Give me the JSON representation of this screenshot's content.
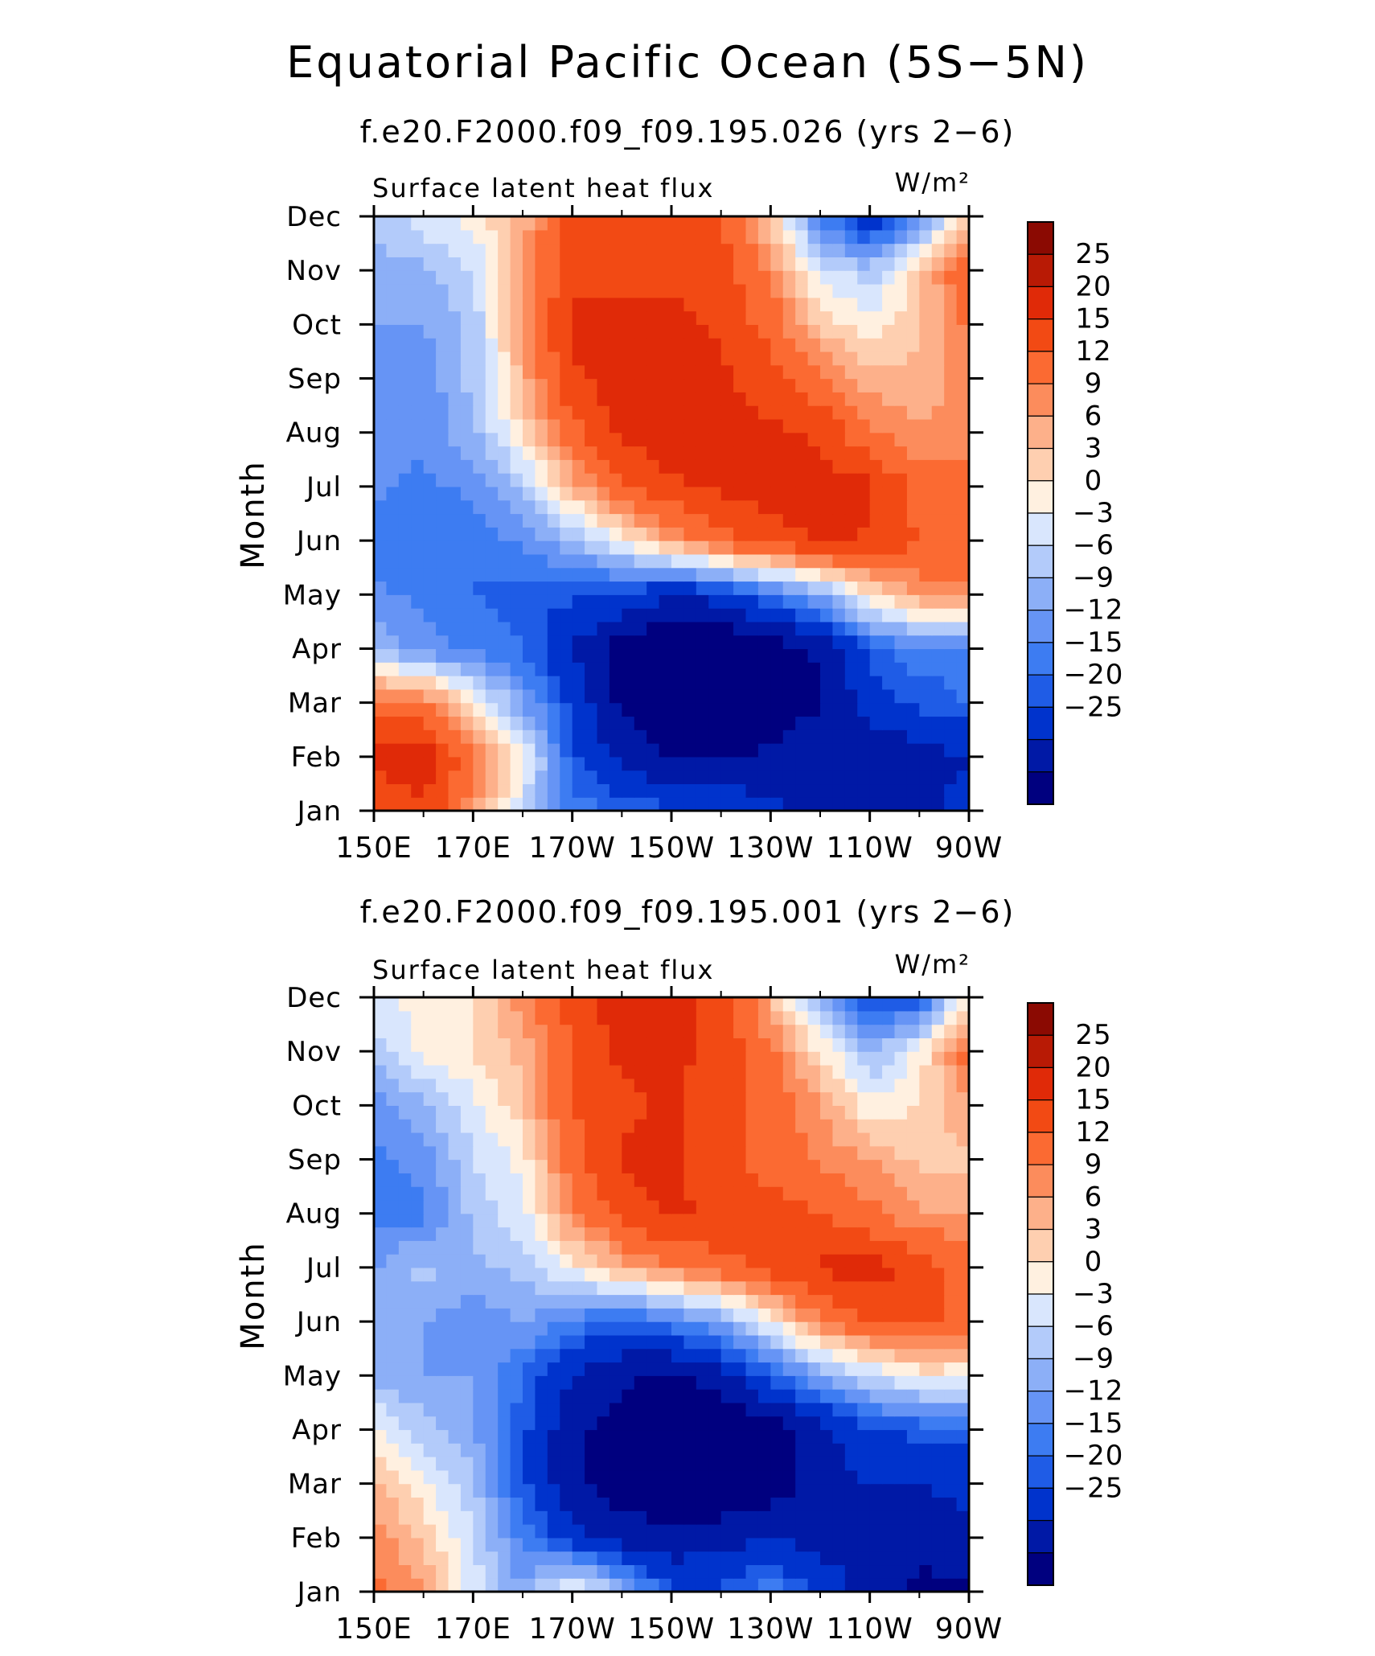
{
  "title": "Equatorial Pacific Ocean (5S−5N)",
  "colormap": {
    "colors": [
      "#00007f",
      "#0019a6",
      "#0033cc",
      "#1f5ce6",
      "#3d7cf2",
      "#6694f5",
      "#8caff7",
      "#b3cbfa",
      "#d9e6fd",
      "#fff0e0",
      "#fecfb0",
      "#fdb08a",
      "#fc8c5c",
      "#fb6a32",
      "#f24a14",
      "#e02a08",
      "#b81a05",
      "#8b0a02"
    ],
    "labels": [
      "25",
      "20",
      "15",
      "12",
      "9",
      "6",
      "3",
      "0",
      "−3",
      "−6",
      "−9",
      "−12",
      "−15",
      "−20",
      "−25"
    ],
    "levels": [
      -25,
      -20,
      -15,
      -12,
      -9,
      -6,
      -3,
      0,
      3,
      6,
      9,
      12,
      15,
      20,
      25
    ]
  },
  "panels": [
    {
      "subtitle": "f.e20.F2000.f09_f09.195.026 (yrs 2−6)",
      "left_label": "Surface latent heat flux",
      "units": "W/m²",
      "ylabel": "Month"
    },
    {
      "subtitle": "f.e20.F2000.f09_f09.195.001 (yrs 2−6)",
      "left_label": "Surface latent heat flux",
      "units": "W/m²",
      "ylabel": "Month"
    }
  ],
  "chart_data": [
    {
      "type": "heatmap",
      "title": "f.e20.F2000.f09_f09.195.026 (yrs 2−6)",
      "subtitle": "Surface latent heat flux",
      "units": "W/m²",
      "ylabel": "Month",
      "x": [
        150,
        160,
        170,
        180,
        190,
        200,
        210,
        220,
        230,
        240,
        250,
        260,
        270
      ],
      "x_units": "degrees longitude east",
      "x_tick_values": [
        150,
        170,
        190,
        210,
        230,
        250,
        270
      ],
      "x_tick_labels": [
        "150E",
        "170E",
        "170W",
        "150W",
        "130W",
        "110W",
        "90W"
      ],
      "y": [
        "Jan",
        "Feb",
        "Mar",
        "Apr",
        "May",
        "Jun",
        "Jul",
        "Aug",
        "Sep",
        "Oct",
        "Nov",
        "Dec"
      ],
      "z": [
        [
          22,
          24,
          12,
          0,
          -10,
          -12,
          -14,
          -16,
          -18,
          -24,
          -24,
          -22,
          -18
        ],
        [
          26,
          28,
          16,
          4,
          -14,
          -22,
          -26,
          -26,
          -24,
          -20,
          -24,
          -22,
          -20
        ],
        [
          18,
          16,
          6,
          -6,
          -16,
          -26,
          -30,
          -30,
          -28,
          -26,
          -18,
          -14,
          -12
        ],
        [
          -4,
          -8,
          -10,
          -12,
          -20,
          -28,
          -30,
          -30,
          -28,
          -24,
          -14,
          -10,
          -10
        ],
        [
          -8,
          -10,
          -12,
          -14,
          -14,
          -16,
          -20,
          -18,
          -12,
          -6,
          6,
          12,
          14
        ],
        [
          -12,
          -10,
          -12,
          -8,
          -4,
          4,
          12,
          18,
          22,
          26,
          24,
          20,
          18
        ],
        [
          -8,
          -10,
          -8,
          -2,
          10,
          20,
          24,
          26,
          28,
          28,
          26,
          18,
          16
        ],
        [
          -8,
          -8,
          -4,
          6,
          18,
          26,
          28,
          28,
          26,
          24,
          16,
          12,
          14
        ],
        [
          -8,
          -8,
          -2,
          10,
          24,
          28,
          28,
          26,
          22,
          16,
          10,
          10,
          14
        ],
        [
          -6,
          -6,
          -2,
          12,
          26,
          26,
          26,
          24,
          18,
          8,
          4,
          8,
          16
        ],
        [
          -4,
          -4,
          0,
          12,
          24,
          24,
          24,
          22,
          14,
          2,
          -2,
          8,
          20
        ],
        [
          -2,
          2,
          4,
          10,
          22,
          24,
          24,
          20,
          8,
          -10,
          -20,
          -10,
          10
        ]
      ],
      "levels": [
        -25,
        -20,
        -15,
        -12,
        -9,
        -6,
        -3,
        0,
        3,
        6,
        9,
        12,
        15,
        20,
        25
      ]
    },
    {
      "type": "heatmap",
      "title": "f.e20.F2000.f09_f09.195.001 (yrs 2−6)",
      "subtitle": "Surface latent heat flux",
      "units": "W/m²",
      "ylabel": "Month",
      "x": [
        150,
        160,
        170,
        180,
        190,
        200,
        210,
        220,
        230,
        240,
        250,
        260,
        270
      ],
      "x_units": "degrees longitude east",
      "x_tick_values": [
        150,
        170,
        190,
        210,
        230,
        250,
        270
      ],
      "x_tick_labels": [
        "150E",
        "170E",
        "170W",
        "150W",
        "130W",
        "110W",
        "90W"
      ],
      "y": [
        "Jan",
        "Feb",
        "Mar",
        "Apr",
        "May",
        "Jun",
        "Jul",
        "Aug",
        "Sep",
        "Oct",
        "Nov",
        "Dec"
      ],
      "z": [
        [
          16,
          12,
          2,
          -6,
          6,
          -4,
          -14,
          -14,
          -10,
          -16,
          -22,
          -26,
          -26
        ],
        [
          14,
          8,
          0,
          -10,
          -18,
          -22,
          -24,
          -22,
          -20,
          -22,
          -24,
          -24,
          -22
        ],
        [
          10,
          4,
          -2,
          -14,
          -24,
          -28,
          -30,
          -30,
          -28,
          -22,
          -20,
          -20,
          -18
        ],
        [
          4,
          -2,
          -6,
          -14,
          -24,
          -28,
          -30,
          -30,
          -28,
          -22,
          -16,
          -14,
          -14
        ],
        [
          -4,
          -6,
          -6,
          -12,
          -20,
          -24,
          -26,
          -22,
          -14,
          -6,
          0,
          4,
          4
        ],
        [
          -4,
          -6,
          -8,
          -6,
          -10,
          -14,
          -10,
          -6,
          4,
          14,
          20,
          22,
          18
        ],
        [
          -6,
          -2,
          -4,
          -2,
          4,
          10,
          14,
          18,
          22,
          26,
          28,
          22,
          18
        ],
        [
          -10,
          -10,
          -2,
          2,
          14,
          22,
          26,
          24,
          22,
          20,
          16,
          12,
          12
        ],
        [
          -10,
          -8,
          0,
          4,
          18,
          26,
          26,
          22,
          18,
          14,
          12,
          8,
          8
        ],
        [
          -8,
          -4,
          2,
          8,
          20,
          24,
          26,
          22,
          18,
          12,
          4,
          6,
          12
        ],
        [
          -2,
          4,
          6,
          10,
          20,
          26,
          26,
          24,
          16,
          6,
          -4,
          4,
          18
        ],
        [
          2,
          4,
          6,
          14,
          22,
          28,
          28,
          22,
          10,
          -6,
          -16,
          -14,
          6
        ]
      ],
      "levels": [
        -25,
        -20,
        -15,
        -12,
        -9,
        -6,
        -3,
        0,
        3,
        6,
        9,
        12,
        15,
        20,
        25
      ]
    }
  ]
}
